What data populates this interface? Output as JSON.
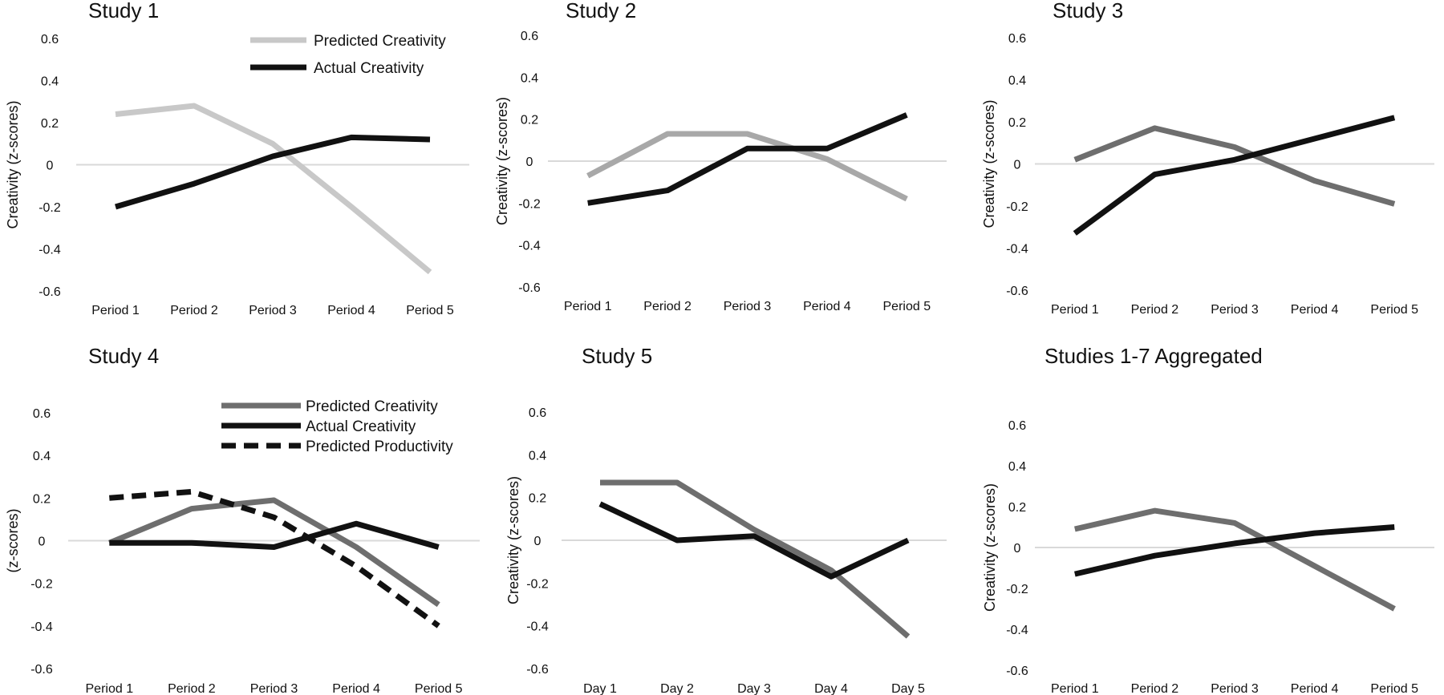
{
  "colors": {
    "zero_line": "#d9d9d9",
    "text": "#111111"
  },
  "chart_data": [
    {
      "type": "line",
      "title": "Study 1",
      "ylabel": "Creativity (z-scores)",
      "ylim": [
        -0.6,
        0.6
      ],
      "yticks": [
        "0.6",
        "0.4",
        "0.2",
        "0",
        "-0.2",
        "-0.4",
        "-0.6"
      ],
      "categories": [
        "Period 1",
        "Period 2",
        "Period 3",
        "Period 4",
        "Period 5"
      ],
      "legend": true,
      "series": [
        {
          "name": "Predicted Creativity",
          "color": "#c8c8c8",
          "dash": false,
          "values": [
            0.24,
            0.28,
            0.1,
            -0.2,
            -0.51
          ]
        },
        {
          "name": "Actual Creativity",
          "color": "#111111",
          "dash": false,
          "values": [
            -0.2,
            -0.09,
            0.04,
            0.13,
            0.12
          ]
        }
      ]
    },
    {
      "type": "line",
      "title": "Study 2",
      "ylabel": "Creativity (z-scores)",
      "ylim": [
        -0.6,
        0.6
      ],
      "yticks": [
        "0.6",
        "0.4",
        "0.2",
        "0",
        "-0.2",
        "-0.4",
        "-0.6"
      ],
      "categories": [
        "Period 1",
        "Period 2",
        "Period 3",
        "Period 4",
        "Period 5"
      ],
      "legend": false,
      "series": [
        {
          "name": "",
          "color": "#a8a8a8",
          "dash": false,
          "values": [
            -0.07,
            0.13,
            0.13,
            0.01,
            -0.18
          ]
        },
        {
          "name": "",
          "color": "#111111",
          "dash": false,
          "values": [
            -0.2,
            -0.14,
            0.06,
            0.06,
            0.22
          ]
        }
      ]
    },
    {
      "type": "line",
      "title": "Study 3",
      "ylabel": "Creativity (z-scores)",
      "ylim": [
        -0.6,
        0.6
      ],
      "yticks": [
        "0.6",
        "0.4",
        "0.2",
        "0",
        "-0.2",
        "-0.4",
        "-0.6"
      ],
      "categories": [
        "Period 1",
        "Period 2",
        "Period 3",
        "Period 4",
        "Period 5"
      ],
      "legend": false,
      "series": [
        {
          "name": "",
          "color": "#6e6e6e",
          "dash": false,
          "values": [
            0.02,
            0.17,
            0.08,
            -0.08,
            -0.19
          ]
        },
        {
          "name": "",
          "color": "#111111",
          "dash": false,
          "values": [
            -0.33,
            -0.05,
            0.02,
            0.12,
            0.22
          ]
        }
      ]
    },
    {
      "type": "line",
      "title": "Study 4",
      "ylabel": "(z-scores)",
      "ylim": [
        -0.6,
        0.6
      ],
      "yticks": [
        "0.6",
        "0.4",
        "0.2",
        "0",
        "-0.2",
        "-0.4",
        "-0.6"
      ],
      "categories": [
        "Period 1",
        "Period 2",
        "Period 3",
        "Period 4",
        "Period 5"
      ],
      "legend": true,
      "series": [
        {
          "name": "Predicted Creativity",
          "color": "#6e6e6e",
          "dash": false,
          "values": [
            -0.01,
            0.15,
            0.19,
            -0.03,
            -0.3
          ]
        },
        {
          "name": "Actual Creativity",
          "color": "#111111",
          "dash": false,
          "values": [
            -0.01,
            -0.01,
            -0.03,
            0.08,
            -0.03
          ]
        },
        {
          "name": "Predicted Productivity",
          "color": "#111111",
          "dash": true,
          "values": [
            0.2,
            0.23,
            0.11,
            -0.12,
            -0.4
          ]
        }
      ]
    },
    {
      "type": "line",
      "title": "Study 5",
      "ylabel": "Creativity (z-scores)",
      "ylim": [
        -0.6,
        0.6
      ],
      "yticks": [
        "0.6",
        "0.4",
        "0.2",
        "0",
        "-0.2",
        "-0.4",
        "-0.6"
      ],
      "categories": [
        "Day 1",
        "Day 2",
        "Day 3",
        "Day 4",
        "Day 5"
      ],
      "legend": false,
      "series": [
        {
          "name": "",
          "color": "#6e6e6e",
          "dash": false,
          "values": [
            0.27,
            0.27,
            0.05,
            -0.14,
            -0.45
          ]
        },
        {
          "name": "",
          "color": "#111111",
          "dash": false,
          "values": [
            0.17,
            0.0,
            0.02,
            -0.17,
            0.0
          ]
        }
      ]
    },
    {
      "type": "line",
      "title": "Studies 1-7 Aggregated",
      "ylabel": "Creativity (z-scores)",
      "ylim": [
        -0.6,
        0.6
      ],
      "yticks": [
        "0.6",
        "0.4",
        "0.2",
        "0",
        "-0.2",
        "-0.4",
        "-0.6"
      ],
      "categories": [
        "Period 1",
        "Period 2",
        "Period 3",
        "Period 4",
        "Period 5"
      ],
      "legend": false,
      "series": [
        {
          "name": "",
          "color": "#6e6e6e",
          "dash": false,
          "values": [
            0.09,
            0.18,
            0.12,
            -0.09,
            -0.3
          ]
        },
        {
          "name": "",
          "color": "#111111",
          "dash": false,
          "values": [
            -0.13,
            -0.04,
            0.02,
            0.07,
            0.1
          ]
        }
      ]
    }
  ]
}
